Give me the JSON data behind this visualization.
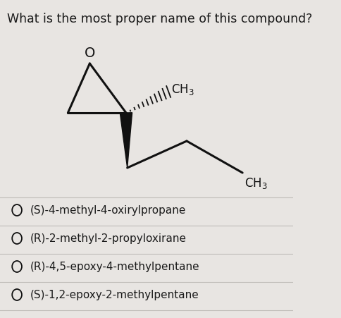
{
  "title": "What is the most proper name of this compound?",
  "title_fontsize": 12.5,
  "background_color": "#e8e5e2",
  "options": [
    "(S)-4-methyl-4-oxirylpropane",
    "(R)-2-methyl-2-propyloxirane",
    "(R)-4,5-epoxy-4-methylpentane",
    "(S)-1,2-epoxy-2-methylpentane"
  ],
  "options_fontsize": 11,
  "text_color": "#1a1a1a",
  "line_color": "#111111",
  "line_width": 2.2,
  "divider_color": "#c0bdb9",
  "mol_scale": 1.0
}
